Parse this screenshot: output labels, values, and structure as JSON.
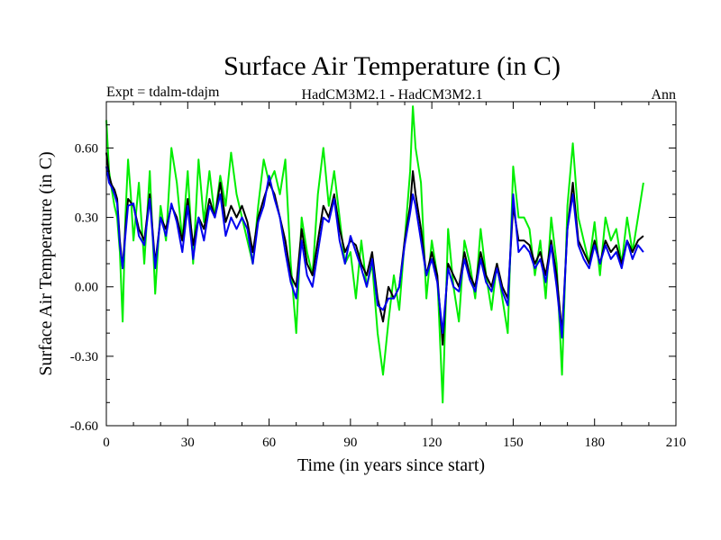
{
  "chart_data": {
    "type": "line",
    "title": "Surface Air Temperature (in C)",
    "subtitle_left": "Expt = tdalm-tdajm",
    "subtitle_center": "HadCM3M2.1 - HadCM3M2.1",
    "subtitle_right": "Ann",
    "xlabel": "Time (in years since start)",
    "ylabel": "Surface Air Temperature (in C)",
    "xlim": [
      0,
      210
    ],
    "ylim": [
      -0.6,
      0.8
    ],
    "xticks": [
      0,
      30,
      60,
      90,
      120,
      150,
      180,
      210
    ],
    "yticks": [
      -0.6,
      -0.3,
      0.0,
      0.3,
      0.6
    ],
    "ytick_labels": [
      "-0.60",
      "-0.30",
      "0.00",
      "0.30",
      "0.60"
    ],
    "series": [
      {
        "name": "green",
        "color": "#00ee00",
        "x": [
          0,
          1,
          2,
          3,
          4,
          5,
          6,
          7,
          8,
          9,
          10,
          12,
          14,
          16,
          18,
          20,
          22,
          24,
          26,
          28,
          30,
          32,
          34,
          36,
          38,
          40,
          42,
          44,
          46,
          48,
          50,
          52,
          54,
          56,
          58,
          60,
          62,
          64,
          66,
          68,
          70,
          72,
          74,
          76,
          78,
          80,
          82,
          84,
          86,
          88,
          90,
          92,
          94,
          96,
          98,
          100,
          102,
          104,
          106,
          108,
          110,
          112,
          113,
          114,
          116,
          118,
          120,
          122,
          124,
          126,
          128,
          130,
          132,
          134,
          136,
          138,
          140,
          142,
          144,
          146,
          148,
          150,
          152,
          154,
          156,
          158,
          160,
          162,
          164,
          166,
          168,
          170,
          172,
          174,
          176,
          178,
          180,
          182,
          184,
          186,
          188,
          190,
          192,
          194,
          196,
          198
        ],
        "y": [
          0.72,
          0.5,
          0.42,
          0.35,
          0.3,
          0.15,
          -0.15,
          0.3,
          0.55,
          0.4,
          0.2,
          0.45,
          0.1,
          0.5,
          -0.03,
          0.35,
          0.2,
          0.6,
          0.45,
          0.2,
          0.5,
          0.1,
          0.55,
          0.28,
          0.5,
          0.3,
          0.48,
          0.35,
          0.58,
          0.4,
          0.3,
          0.2,
          0.1,
          0.35,
          0.55,
          0.45,
          0.5,
          0.4,
          0.55,
          0.1,
          -0.2,
          0.3,
          0.15,
          0.05,
          0.4,
          0.6,
          0.35,
          0.5,
          0.3,
          0.1,
          0.15,
          -0.05,
          0.2,
          0.0,
          0.1,
          -0.2,
          -0.38,
          -0.15,
          0.05,
          -0.1,
          0.2,
          0.5,
          0.78,
          0.6,
          0.45,
          -0.05,
          0.2,
          0.05,
          -0.5,
          0.25,
          0.0,
          -0.15,
          0.2,
          0.1,
          -0.05,
          0.25,
          0.05,
          -0.1,
          0.1,
          -0.05,
          -0.2,
          0.52,
          0.3,
          0.3,
          0.25,
          0.05,
          0.2,
          -0.05,
          0.3,
          0.1,
          -0.38,
          0.35,
          0.62,
          0.3,
          0.2,
          0.1,
          0.28,
          0.05,
          0.3,
          0.2,
          0.25,
          0.1,
          0.3,
          0.15,
          0.3,
          0.45
        ]
      },
      {
        "name": "black",
        "color": "#000000",
        "x": [
          0,
          1,
          2,
          3,
          4,
          5,
          6,
          7,
          8,
          10,
          12,
          14,
          16,
          18,
          20,
          22,
          24,
          26,
          28,
          30,
          32,
          34,
          36,
          38,
          40,
          42,
          44,
          46,
          48,
          50,
          52,
          54,
          56,
          58,
          60,
          62,
          64,
          66,
          68,
          70,
          72,
          74,
          76,
          78,
          80,
          82,
          84,
          86,
          88,
          90,
          92,
          94,
          96,
          98,
          100,
          102,
          104,
          106,
          108,
          110,
          112,
          113,
          114,
          116,
          118,
          120,
          122,
          124,
          126,
          128,
          130,
          132,
          134,
          136,
          138,
          140,
          142,
          144,
          146,
          148,
          150,
          152,
          154,
          156,
          158,
          160,
          162,
          164,
          166,
          168,
          170,
          172,
          174,
          176,
          178,
          180,
          182,
          184,
          186,
          188,
          190,
          192,
          194,
          196,
          198
        ],
        "y": [
          0.58,
          0.48,
          0.44,
          0.42,
          0.38,
          0.2,
          0.08,
          0.25,
          0.38,
          0.35,
          0.25,
          0.2,
          0.4,
          0.1,
          0.3,
          0.25,
          0.35,
          0.3,
          0.2,
          0.38,
          0.18,
          0.3,
          0.25,
          0.38,
          0.3,
          0.45,
          0.28,
          0.35,
          0.3,
          0.35,
          0.28,
          0.15,
          0.3,
          0.38,
          0.45,
          0.4,
          0.3,
          0.2,
          0.05,
          0.0,
          0.25,
          0.1,
          0.05,
          0.2,
          0.35,
          0.3,
          0.4,
          0.25,
          0.15,
          0.2,
          0.18,
          0.1,
          0.05,
          0.15,
          -0.05,
          -0.15,
          0.0,
          -0.05,
          0.0,
          0.2,
          0.35,
          0.5,
          0.4,
          0.25,
          0.05,
          0.15,
          0.05,
          -0.25,
          0.1,
          0.05,
          0.0,
          0.15,
          0.05,
          0.0,
          0.15,
          0.05,
          0.0,
          0.1,
          0.0,
          -0.05,
          0.35,
          0.2,
          0.2,
          0.18,
          0.1,
          0.15,
          0.05,
          0.2,
          0.05,
          -0.2,
          0.25,
          0.45,
          0.2,
          0.15,
          0.1,
          0.2,
          0.1,
          0.2,
          0.15,
          0.18,
          0.1,
          0.2,
          0.15,
          0.2,
          0.22
        ]
      },
      {
        "name": "blue",
        "color": "#0000ee",
        "x": [
          0,
          1,
          2,
          3,
          4,
          5,
          6,
          7,
          8,
          10,
          12,
          14,
          16,
          18,
          20,
          22,
          24,
          26,
          28,
          30,
          32,
          34,
          36,
          38,
          40,
          42,
          44,
          46,
          48,
          50,
          52,
          54,
          56,
          58,
          60,
          62,
          64,
          66,
          68,
          70,
          72,
          74,
          76,
          78,
          80,
          82,
          84,
          86,
          88,
          90,
          92,
          94,
          96,
          98,
          100,
          102,
          104,
          106,
          108,
          110,
          112,
          113,
          114,
          116,
          118,
          120,
          122,
          124,
          126,
          128,
          130,
          132,
          134,
          136,
          138,
          140,
          142,
          144,
          146,
          148,
          150,
          152,
          154,
          156,
          158,
          160,
          162,
          164,
          166,
          168,
          170,
          172,
          174,
          176,
          178,
          180,
          182,
          184,
          186,
          188,
          190,
          192,
          194,
          196,
          198
        ],
        "y": [
          0.52,
          0.45,
          0.43,
          0.4,
          0.36,
          0.18,
          0.08,
          0.22,
          0.35,
          0.36,
          0.22,
          0.18,
          0.38,
          0.08,
          0.3,
          0.22,
          0.36,
          0.28,
          0.15,
          0.35,
          0.12,
          0.3,
          0.2,
          0.35,
          0.3,
          0.4,
          0.22,
          0.3,
          0.25,
          0.3,
          0.25,
          0.1,
          0.28,
          0.35,
          0.48,
          0.38,
          0.3,
          0.15,
          0.02,
          -0.05,
          0.2,
          0.05,
          0.0,
          0.15,
          0.3,
          0.28,
          0.38,
          0.2,
          0.1,
          0.22,
          0.15,
          0.08,
          0.0,
          0.12,
          -0.08,
          -0.1,
          -0.05,
          -0.05,
          0.0,
          0.18,
          0.32,
          0.4,
          0.35,
          0.2,
          0.05,
          0.12,
          0.02,
          -0.2,
          0.08,
          0.0,
          -0.02,
          0.12,
          0.03,
          -0.02,
          0.12,
          0.02,
          -0.02,
          0.08,
          -0.02,
          -0.08,
          0.4,
          0.15,
          0.18,
          0.15,
          0.08,
          0.12,
          0.02,
          0.18,
          0.0,
          -0.22,
          0.25,
          0.4,
          0.18,
          0.12,
          0.08,
          0.18,
          0.1,
          0.18,
          0.12,
          0.15,
          0.08,
          0.2,
          0.12,
          0.18,
          0.15
        ]
      }
    ]
  }
}
